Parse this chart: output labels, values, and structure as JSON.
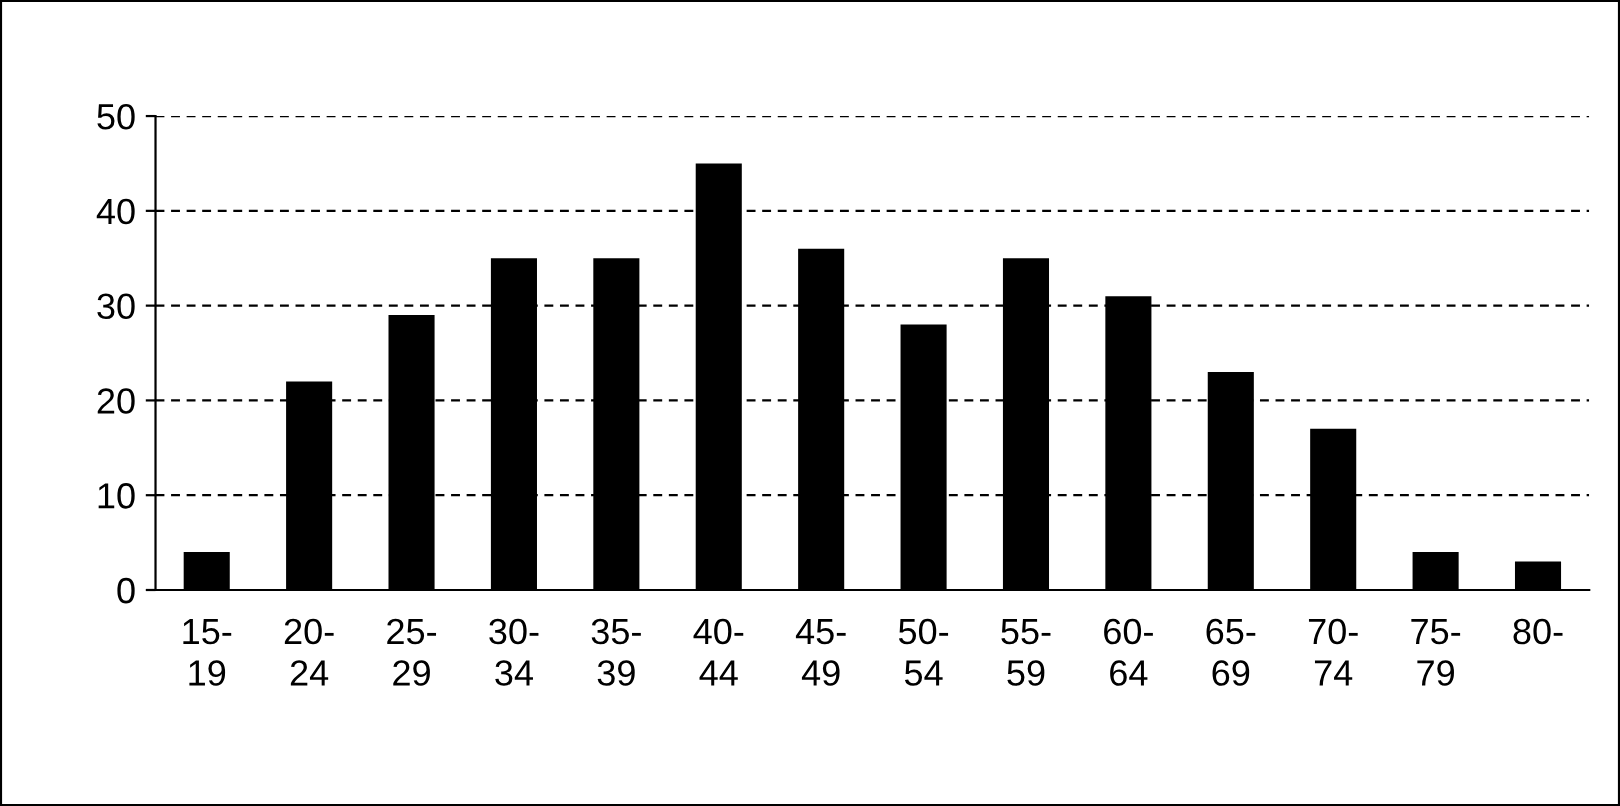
{
  "chart_data": {
    "type": "bar",
    "categories": [
      "15-\n19",
      "20-\n24",
      "25-\n29",
      "30-\n34",
      "35-\n39",
      "40-\n44",
      "45-\n49",
      "50-\n54",
      "55-\n59",
      "60-\n64",
      "65-\n69",
      "70-\n74",
      "75-\n79",
      "80-"
    ],
    "values": [
      4,
      22,
      29,
      35,
      35,
      45,
      36,
      28,
      35,
      31,
      23,
      17,
      4,
      3
    ],
    "color": "#000000",
    "ylim": [
      0,
      50
    ],
    "yticks": [
      0,
      10,
      20,
      30,
      40,
      50
    ],
    "grid": "y",
    "legend": false
  }
}
